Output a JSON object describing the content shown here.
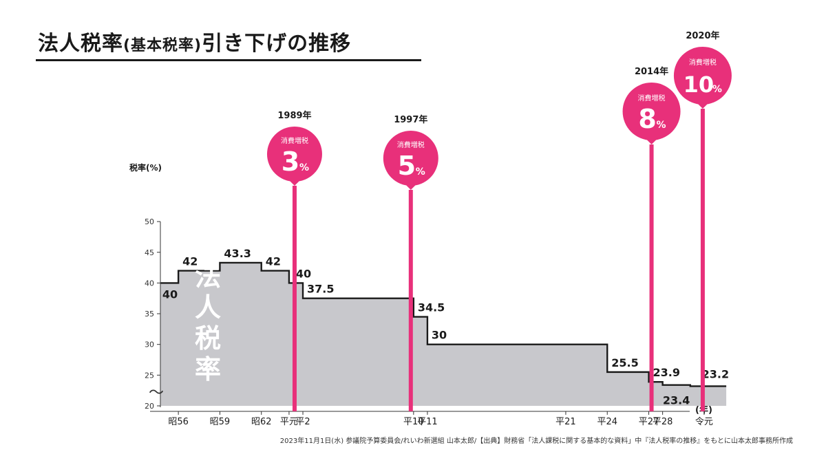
{
  "title_main": "法人税率",
  "title_paren": "(基本税率)",
  "title_tail": "引き下げの推移",
  "source_note": "2023年11月1日(水) 参議院予算委員会/れいわ新選組 山本太郎/【出典】財務省「法人課税に関する基本的な資料」中『法人税率の推移』をもとに山本太郎事務所作成",
  "colors": {
    "area": "#c8c8cc",
    "line": "#1a1a1a",
    "accent": "#e8307a",
    "badge_text": "#ffffff"
  },
  "chart_data": {
    "type": "area",
    "ylabel": "税率(%)",
    "xlabel": "(年)",
    "ylim": [
      20,
      50
    ],
    "yticks": [
      20,
      25,
      30,
      35,
      40,
      45,
      50
    ],
    "axis_break_symbol": "〜",
    "area_label": [
      "法",
      "人",
      "税",
      "率"
    ],
    "xticks": [
      {
        "label": "昭56",
        "year": 1981
      },
      {
        "label": "昭59",
        "year": 1984
      },
      {
        "label": "昭62",
        "year": 1987
      },
      {
        "label": "平元",
        "year": 1989
      },
      {
        "label": "平2",
        "year": 1990
      },
      {
        "label": "平10",
        "year": 1998
      },
      {
        "label": "平11",
        "year": 1999
      },
      {
        "label": "平21",
        "year": 2009
      },
      {
        "label": "平24",
        "year": 2012
      },
      {
        "label": "平27",
        "year": 2015
      },
      {
        "label": "平28",
        "year": 2016
      },
      {
        "label": "令元",
        "year": 2019
      }
    ],
    "steps": [
      {
        "from": 1979.7,
        "to": 1981,
        "value": 40,
        "label": "40"
      },
      {
        "from": 1981,
        "to": 1984,
        "value": 42,
        "label": "42"
      },
      {
        "from": 1984,
        "to": 1987,
        "value": 43.3,
        "label": "43.3"
      },
      {
        "from": 1987,
        "to": 1989,
        "value": 42,
        "label": "42"
      },
      {
        "from": 1989,
        "to": 1990,
        "value": 40,
        "label": "40"
      },
      {
        "from": 1990,
        "to": 1998,
        "value": 37.5,
        "label": "37.5"
      },
      {
        "from": 1998,
        "to": 1999,
        "value": 34.5,
        "label": "34.5"
      },
      {
        "from": 1999,
        "to": 2012,
        "value": 30,
        "label": "30"
      },
      {
        "from": 2012,
        "to": 2015,
        "value": 25.5,
        "label": "25.5"
      },
      {
        "from": 2015,
        "to": 2016,
        "value": 23.9,
        "label": "23.9"
      },
      {
        "from": 2016,
        "to": 2018,
        "value": 23.4,
        "label": "23.4"
      },
      {
        "from": 2018,
        "to": 2020.6,
        "value": 23.2,
        "label": "23.2"
      }
    ],
    "events": [
      {
        "year": 1989.4,
        "year_label": "1989年",
        "caption": "消費増税",
        "rate": "3",
        "unit": "%"
      },
      {
        "year": 1997.8,
        "year_label": "1997年",
        "caption": "消費増税",
        "rate": "5",
        "unit": "%"
      },
      {
        "year": 2015.2,
        "year_label": "2014年",
        "caption": "消費増税",
        "rate": "8",
        "unit": "%"
      },
      {
        "year": 2018.9,
        "year_label": "2020年",
        "caption": "消費増税",
        "rate": "10",
        "unit": "%"
      }
    ]
  }
}
